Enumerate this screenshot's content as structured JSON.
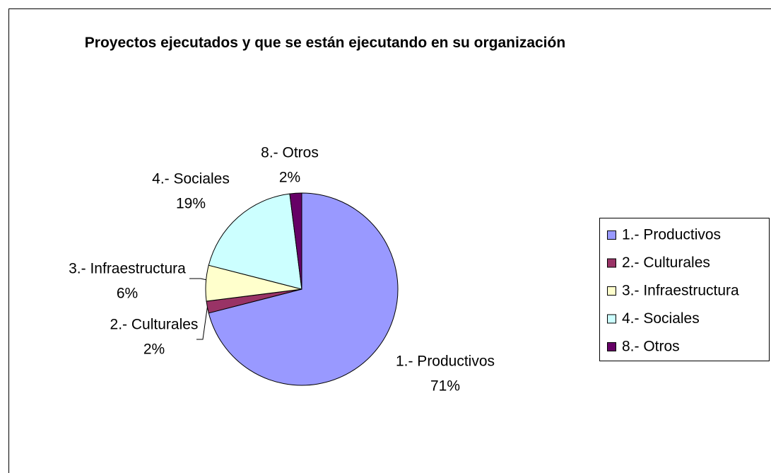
{
  "chart_data": {
    "type": "pie",
    "title": "Proyectos ejecutados y que se están ejecutando en su organización",
    "categories": [
      "1.- Productivos",
      "2.- Culturales",
      "3.- Infraestructura",
      "4.- Sociales",
      "8.- Otros"
    ],
    "values": [
      71,
      2,
      6,
      19,
      2
    ],
    "value_labels": [
      "71%",
      "2%",
      "6%",
      "19%",
      "2%"
    ],
    "colors": [
      "#9999ff",
      "#993366",
      "#ffffcc",
      "#ccffff",
      "#660066"
    ],
    "legend": "right"
  }
}
